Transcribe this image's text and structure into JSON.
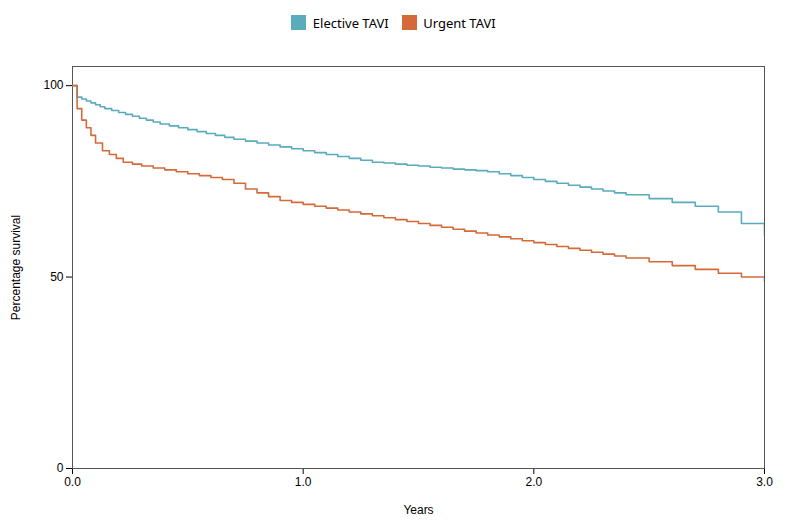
{
  "chart_data": {
    "type": "step",
    "xlabel": "Years",
    "ylabel": "Percentage survival",
    "xlim": [
      0,
      3
    ],
    "ylim": [
      0,
      105
    ],
    "xticks": [
      0,
      1,
      2,
      3
    ],
    "yticks": [
      0,
      50,
      100
    ],
    "grid": false,
    "legend": "top",
    "series": [
      {
        "name": "Elective TAVI",
        "color": "#5aabbc",
        "x": [
          0.0,
          0.02,
          0.04,
          0.06,
          0.08,
          0.1,
          0.12,
          0.14,
          0.17,
          0.2,
          0.23,
          0.26,
          0.29,
          0.32,
          0.35,
          0.38,
          0.42,
          0.46,
          0.5,
          0.54,
          0.58,
          0.62,
          0.66,
          0.7,
          0.75,
          0.8,
          0.85,
          0.9,
          0.95,
          1.0,
          1.05,
          1.1,
          1.15,
          1.2,
          1.25,
          1.3,
          1.35,
          1.4,
          1.45,
          1.5,
          1.55,
          1.6,
          1.65,
          1.7,
          1.75,
          1.8,
          1.85,
          1.9,
          1.95,
          2.0,
          2.05,
          2.1,
          2.15,
          2.2,
          2.25,
          2.3,
          2.35,
          2.4,
          2.5,
          2.6,
          2.7,
          2.8,
          2.9,
          3.0
        ],
        "values": [
          100,
          97,
          96.5,
          96,
          95.5,
          95,
          94.5,
          94,
          93.5,
          93,
          92.5,
          92,
          91.5,
          91,
          90.5,
          90,
          89.5,
          89,
          88.5,
          88,
          87.5,
          87,
          86.5,
          86,
          85.5,
          85,
          84.5,
          84,
          83.5,
          83,
          82.5,
          82,
          81.5,
          81,
          80.5,
          80,
          79.8,
          79.5,
          79.2,
          79,
          78.7,
          78.5,
          78.2,
          78,
          77.8,
          77.5,
          77,
          76.5,
          76,
          75.5,
          75,
          74.5,
          74,
          73.5,
          73,
          72.5,
          72,
          71.5,
          70.5,
          69.5,
          68.5,
          67,
          64,
          61
        ]
      },
      {
        "name": "Urgent TAVI",
        "color": "#d4693a",
        "x": [
          0.0,
          0.02,
          0.04,
          0.06,
          0.08,
          0.1,
          0.13,
          0.16,
          0.19,
          0.22,
          0.26,
          0.3,
          0.35,
          0.4,
          0.45,
          0.5,
          0.55,
          0.6,
          0.65,
          0.7,
          0.75,
          0.8,
          0.85,
          0.9,
          0.95,
          1.0,
          1.05,
          1.1,
          1.15,
          1.2,
          1.25,
          1.3,
          1.35,
          1.4,
          1.45,
          1.5,
          1.55,
          1.6,
          1.65,
          1.7,
          1.75,
          1.8,
          1.85,
          1.9,
          1.95,
          2.0,
          2.05,
          2.1,
          2.15,
          2.2,
          2.25,
          2.3,
          2.35,
          2.4,
          2.5,
          2.6,
          2.7,
          2.8,
          2.9,
          3.0
        ],
        "values": [
          100,
          94,
          91,
          89,
          87,
          85,
          83,
          82,
          81,
          80,
          79.5,
          79,
          78.5,
          78,
          77.5,
          77,
          76.5,
          76,
          75.5,
          74.5,
          73,
          72,
          71,
          70,
          69.5,
          69,
          68.5,
          68,
          67.5,
          67,
          66.5,
          66,
          65.5,
          65,
          64.5,
          64,
          63.5,
          63,
          62.5,
          62,
          61.5,
          61,
          60.5,
          60,
          59.5,
          59,
          58.5,
          58,
          57.5,
          57,
          56.5,
          56,
          55.5,
          55,
          54,
          53,
          52,
          51,
          50,
          49
        ]
      }
    ]
  }
}
